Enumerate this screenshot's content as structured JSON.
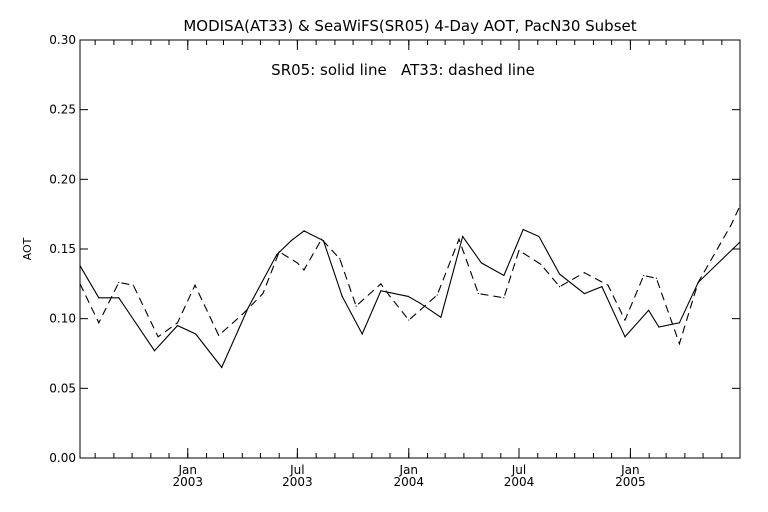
{
  "chart_data": {
    "type": "line",
    "title": "MODISA(AT33) & SeaWiFS(SR05) 4-Day AOT, PacN30 Subset",
    "annotation": "SR05: solid line   AT33: dashed line",
    "xlabel": "",
    "ylabel": "AOT",
    "ylim": [
      0.0,
      0.3
    ],
    "yticks": [
      "0.00",
      "0.05",
      "0.10",
      "0.15",
      "0.20",
      "0.25",
      "0.30"
    ],
    "xlim": [
      "2002-07-07",
      "2005-07-01"
    ],
    "xticks": [
      {
        "date": "2003-01-01",
        "month": "Jan",
        "year": "2003"
      },
      {
        "date": "2003-07-01",
        "month": "Jul",
        "year": "2003"
      },
      {
        "date": "2004-01-01",
        "month": "Jan",
        "year": "2004"
      },
      {
        "date": "2004-07-01",
        "month": "Jul",
        "year": "2004"
      },
      {
        "date": "2005-01-01",
        "month": "Jan",
        "year": "2005"
      }
    ],
    "grid": false,
    "series": [
      {
        "name": "SR05",
        "style": "solid",
        "color": "#000000",
        "points": [
          [
            "2002-07-07",
            0.138
          ],
          [
            "2002-08-07",
            0.115
          ],
          [
            "2002-09-09",
            0.115
          ],
          [
            "2002-11-07",
            0.077
          ],
          [
            "2002-12-15",
            0.095
          ],
          [
            "2003-01-14",
            0.089
          ],
          [
            "2003-02-26",
            0.065
          ],
          [
            "2003-04-11",
            0.108
          ],
          [
            "2003-05-28",
            0.146
          ],
          [
            "2003-06-21",
            0.156
          ],
          [
            "2003-07-12",
            0.163
          ],
          [
            "2003-08-13",
            0.156
          ],
          [
            "2003-09-13",
            0.116
          ],
          [
            "2003-10-16",
            0.089
          ],
          [
            "2003-11-16",
            0.12
          ],
          [
            "2003-12-31",
            0.116
          ],
          [
            "2004-01-20",
            0.111
          ],
          [
            "2004-02-23",
            0.101
          ],
          [
            "2004-03-30",
            0.159
          ],
          [
            "2004-04-30",
            0.14
          ],
          [
            "2004-06-06",
            0.131
          ],
          [
            "2004-07-08",
            0.164
          ],
          [
            "2004-08-03",
            0.159
          ],
          [
            "2004-09-06",
            0.132
          ],
          [
            "2004-10-17",
            0.118
          ],
          [
            "2004-11-15",
            0.123
          ],
          [
            "2004-12-23",
            0.087
          ],
          [
            "2005-01-31",
            0.106
          ],
          [
            "2005-02-17",
            0.094
          ],
          [
            "2005-03-23",
            0.097
          ],
          [
            "2005-04-23",
            0.126
          ],
          [
            "2005-07-01",
            0.155
          ]
        ]
      },
      {
        "name": "AT33",
        "style": "dashed",
        "color": "#000000",
        "points": [
          [
            "2002-07-07",
            0.125
          ],
          [
            "2002-08-07",
            0.097
          ],
          [
            "2002-09-09",
            0.126
          ],
          [
            "2002-10-03",
            0.124
          ],
          [
            "2002-11-13",
            0.087
          ],
          [
            "2002-12-15",
            0.097
          ],
          [
            "2003-01-13",
            0.124
          ],
          [
            "2003-02-21",
            0.088
          ],
          [
            "2003-04-01",
            0.103
          ],
          [
            "2003-05-05",
            0.118
          ],
          [
            "2003-06-01",
            0.148
          ],
          [
            "2003-07-01",
            0.14
          ],
          [
            "2003-07-12",
            0.135
          ],
          [
            "2003-08-10",
            0.157
          ],
          [
            "2003-09-09",
            0.143
          ],
          [
            "2003-10-06",
            0.109
          ],
          [
            "2003-11-16",
            0.125
          ],
          [
            "2003-12-01",
            0.116
          ],
          [
            "2004-01-01",
            0.099
          ],
          [
            "2004-02-17",
            0.117
          ],
          [
            "2004-03-24",
            0.157
          ],
          [
            "2004-04-25",
            0.118
          ],
          [
            "2004-06-06",
            0.115
          ],
          [
            "2004-07-01",
            0.149
          ],
          [
            "2004-08-06",
            0.139
          ],
          [
            "2004-09-06",
            0.123
          ],
          [
            "2004-10-17",
            0.133
          ],
          [
            "2004-11-25",
            0.124
          ],
          [
            "2004-12-23",
            0.099
          ],
          [
            "2005-01-23",
            0.131
          ],
          [
            "2005-02-13",
            0.129
          ],
          [
            "2005-03-23",
            0.082
          ],
          [
            "2005-04-23",
            0.126
          ],
          [
            "2005-06-16",
            0.167
          ],
          [
            "2005-07-01",
            0.181
          ]
        ]
      }
    ]
  }
}
